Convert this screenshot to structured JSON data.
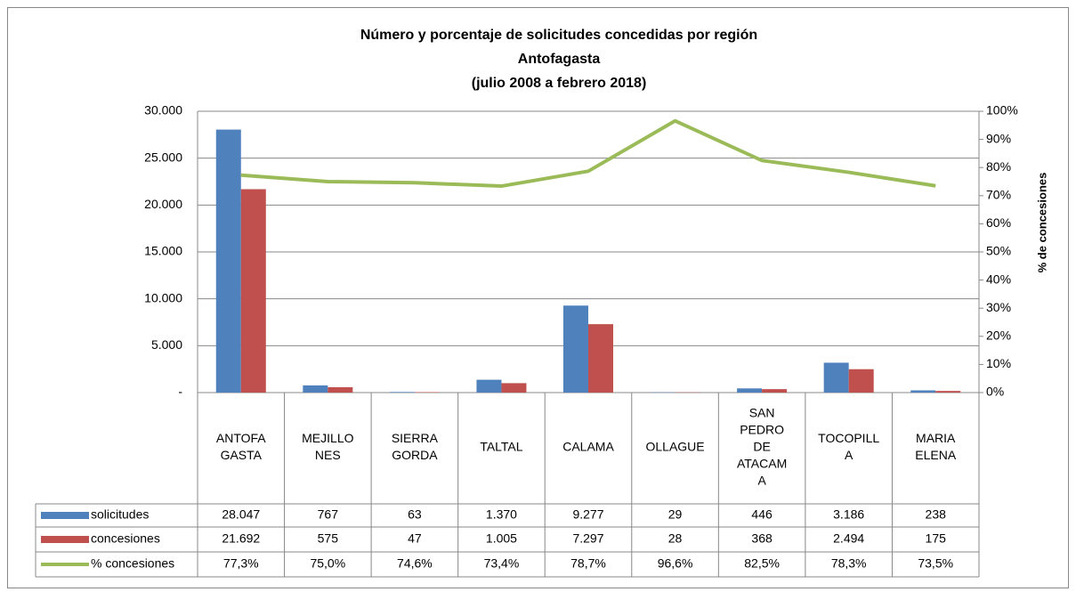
{
  "chart_data": {
    "type": "bar",
    "title": [
      "Número y porcentaje de solicitudes concedidas por región",
      "Antofagasta",
      "(julio 2008 a febrero 2018)"
    ],
    "y2_label": "% de concesiones",
    "categories": [
      [
        "ANTOFA",
        "GASTA"
      ],
      [
        "MEJILLO",
        "NES"
      ],
      [
        "SIERRA",
        "GORDA"
      ],
      [
        "TALTAL"
      ],
      [
        "CALAMA"
      ],
      [
        "OLLAGUE"
      ],
      [
        "SAN",
        "PEDRO",
        "DE",
        "ATACAM",
        "A"
      ],
      [
        "TOCOPILL",
        "A"
      ],
      [
        "MARIA",
        "ELENA"
      ]
    ],
    "series": [
      {
        "name": "solicitudes",
        "color": "#4f81bd",
        "type": "bar",
        "values": [
          28047,
          767,
          63,
          1370,
          9277,
          29,
          446,
          3186,
          238
        ],
        "value_labels": [
          "28.047",
          "767",
          "63",
          "1.370",
          "9.277",
          "29",
          "446",
          "3.186",
          "238"
        ]
      },
      {
        "name": "concesiones",
        "color": "#c0504d",
        "type": "bar",
        "values": [
          21692,
          575,
          47,
          1005,
          7297,
          28,
          368,
          2494,
          175
        ],
        "value_labels": [
          "21.692",
          "575",
          "47",
          "1.005",
          "7.297",
          "28",
          "368",
          "2.494",
          "175"
        ]
      },
      {
        "name": "% concesiones",
        "color": "#9bbb59",
        "type": "line",
        "axis": "y2",
        "values": [
          77.3,
          75.0,
          74.6,
          73.4,
          78.7,
          96.6,
          82.5,
          78.3,
          73.5
        ],
        "value_labels": [
          "77,3%",
          "75,0%",
          "74,6%",
          "73,4%",
          "78,7%",
          "96,6%",
          "82,5%",
          "78,3%",
          "73,5%"
        ]
      }
    ],
    "ylim": [
      0,
      30000
    ],
    "yticks": [
      {
        "value": 0,
        "label": "-"
      },
      {
        "value": 5000,
        "label": "5.000"
      },
      {
        "value": 10000,
        "label": "10.000"
      },
      {
        "value": 15000,
        "label": "15.000"
      },
      {
        "value": 20000,
        "label": "20.000"
      },
      {
        "value": 25000,
        "label": "25.000"
      },
      {
        "value": 30000,
        "label": "30.000"
      }
    ],
    "y2lim": [
      0,
      100
    ],
    "y2ticks": [
      {
        "value": 0,
        "label": "0%"
      },
      {
        "value": 10,
        "label": "10%"
      },
      {
        "value": 20,
        "label": "20%"
      },
      {
        "value": 30,
        "label": "30%"
      },
      {
        "value": 40,
        "label": "40%"
      },
      {
        "value": 50,
        "label": "50%"
      },
      {
        "value": 60,
        "label": "60%"
      },
      {
        "value": 70,
        "label": "70%"
      },
      {
        "value": 80,
        "label": "80%"
      },
      {
        "value": 90,
        "label": "90%"
      },
      {
        "value": 100,
        "label": "100%"
      }
    ],
    "grid": true
  }
}
